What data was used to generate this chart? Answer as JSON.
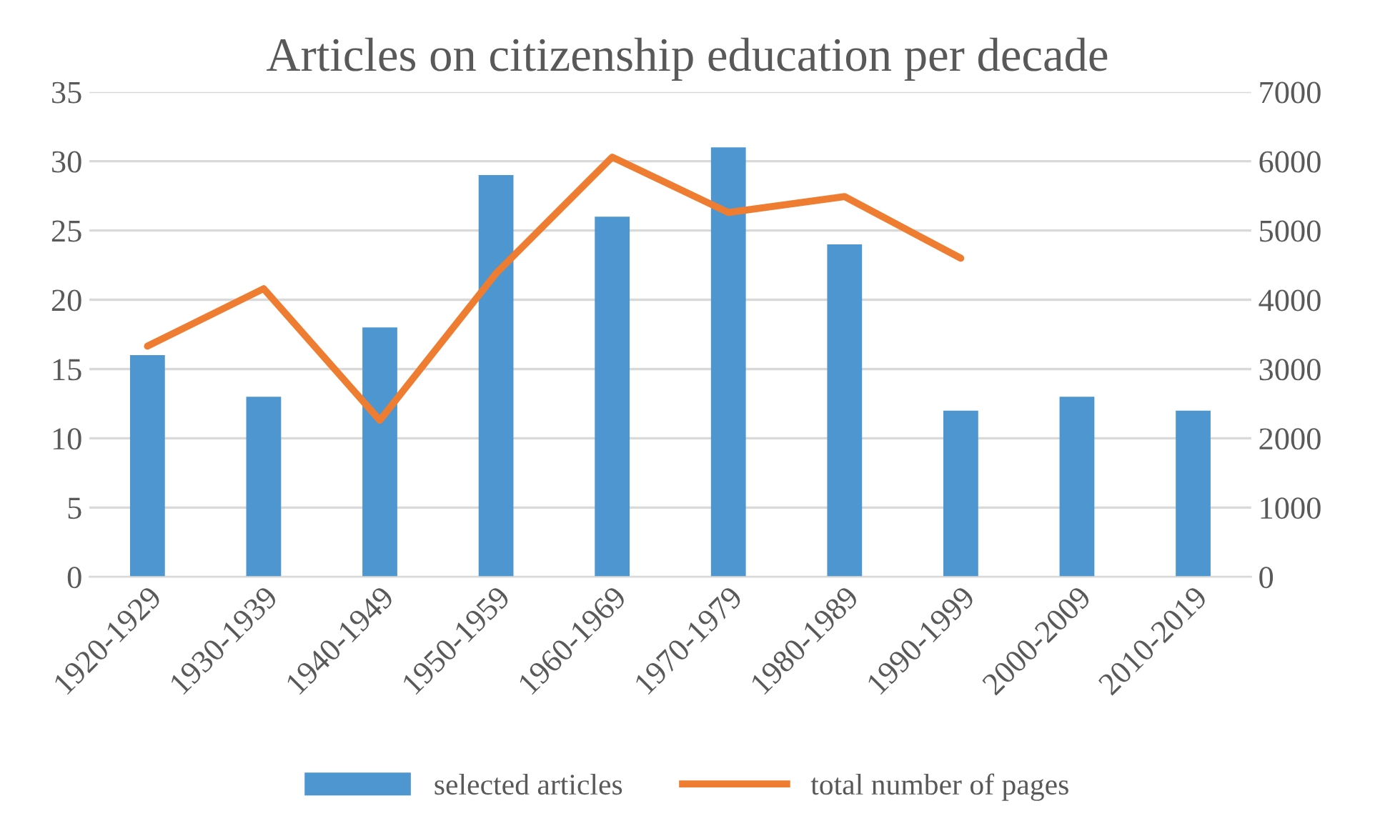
{
  "chart_data": {
    "type": "bar",
    "title": "Articles on citizenship education per decade",
    "categories": [
      "1920-1929",
      "1930-1939",
      "1940-1949",
      "1950-1959",
      "1960-1969",
      "1970-1979",
      "1980-1989",
      "1990-1999",
      "2000-2009",
      "2010-2019"
    ],
    "series": [
      {
        "name": "selected articles",
        "color": "#4e96d0",
        "values": [
          16,
          13,
          18,
          29,
          26,
          31,
          24,
          12,
          13,
          12
        ]
      },
      {
        "name": "total number of pages",
        "type": "line",
        "axis": "y2",
        "color": "#ef7d31",
        "values": [
          3330,
          4160,
          2260,
          4380,
          6060,
          5260,
          5490,
          4600,
          null,
          null
        ]
      }
    ],
    "ylim": [
      0,
      35
    ],
    "yticks": [
      0,
      5,
      10,
      15,
      20,
      25,
      30,
      35
    ],
    "y2lim": [
      0,
      7000
    ],
    "y2ticks": [
      0,
      1000,
      2000,
      3000,
      4000,
      5000,
      6000,
      7000
    ],
    "grid": "y",
    "legend": "bottom",
    "marker": "none"
  }
}
